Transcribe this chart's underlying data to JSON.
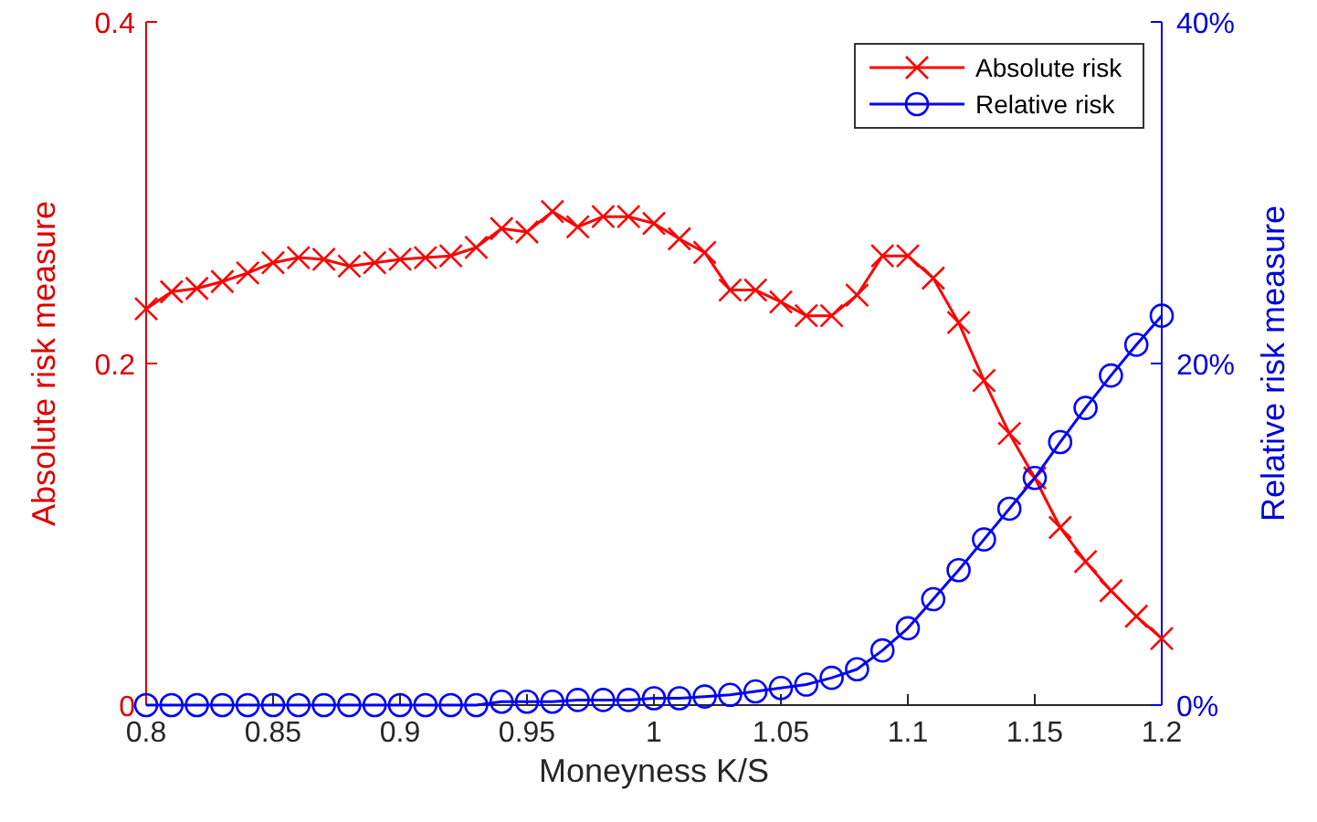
{
  "chart_data": {
    "type": "line",
    "xlabel": "Moneyness K/S",
    "ylabel": "Absolute risk measure",
    "y2label": "Relative risk measure",
    "x": [
      0.8,
      0.81,
      0.82,
      0.83,
      0.84,
      0.85,
      0.86,
      0.87,
      0.88,
      0.89,
      0.9,
      0.91,
      0.92,
      0.93,
      0.94,
      0.95,
      0.96,
      0.97,
      0.98,
      0.99,
      1.0,
      1.01,
      1.02,
      1.03,
      1.04,
      1.05,
      1.06,
      1.07,
      1.08,
      1.09,
      1.1,
      1.11,
      1.12,
      1.13,
      1.14,
      1.15,
      1.16,
      1.17,
      1.18,
      1.19,
      1.2
    ],
    "series": [
      {
        "name": "Absolute risk",
        "color": "#ff0000",
        "marker": "cross",
        "values": [
          0.232,
          0.242,
          0.244,
          0.248,
          0.253,
          0.259,
          0.262,
          0.261,
          0.257,
          0.259,
          0.261,
          0.262,
          0.263,
          0.268,
          0.279,
          0.277,
          0.289,
          0.28,
          0.286,
          0.286,
          0.282,
          0.273,
          0.265,
          0.243,
          0.243,
          0.236,
          0.228,
          0.228,
          0.24,
          0.263,
          0.263,
          0.25,
          0.224,
          0.19,
          0.159,
          0.133,
          0.104,
          0.084,
          0.067,
          0.052,
          0.039
        ]
      },
      {
        "name": "Relative risk",
        "color": "#0000ff",
        "marker": "circle",
        "axis": "y2",
        "values": [
          0,
          0,
          0,
          0,
          0,
          0,
          0,
          0,
          0,
          0,
          0,
          0,
          0,
          0,
          0.2,
          0.2,
          0.2,
          0.3,
          0.3,
          0.3,
          0.4,
          0.4,
          0.5,
          0.6,
          0.8,
          1.0,
          1.2,
          1.6,
          2.1,
          3.2,
          4.5,
          6.2,
          7.9,
          9.7,
          11.5,
          13.3,
          15.4,
          17.4,
          19.3,
          21.1,
          22.8
        ]
      }
    ],
    "xlim": [
      0.8,
      1.2
    ],
    "xticks": [
      0.8,
      0.85,
      0.9,
      0.95,
      1,
      1.05,
      1.1,
      1.15,
      1.2
    ],
    "ylim": [
      0,
      0.4
    ],
    "yticks": [
      0,
      0.2,
      0.4
    ],
    "y2lim": [
      0,
      40
    ],
    "y2ticks": [
      {
        "value": 0,
        "label": "0%"
      },
      {
        "value": 20,
        "label": "20%"
      },
      {
        "value": 40,
        "label": "40%"
      }
    ],
    "legend": "top right",
    "grid": false,
    "line_style": "solid"
  }
}
